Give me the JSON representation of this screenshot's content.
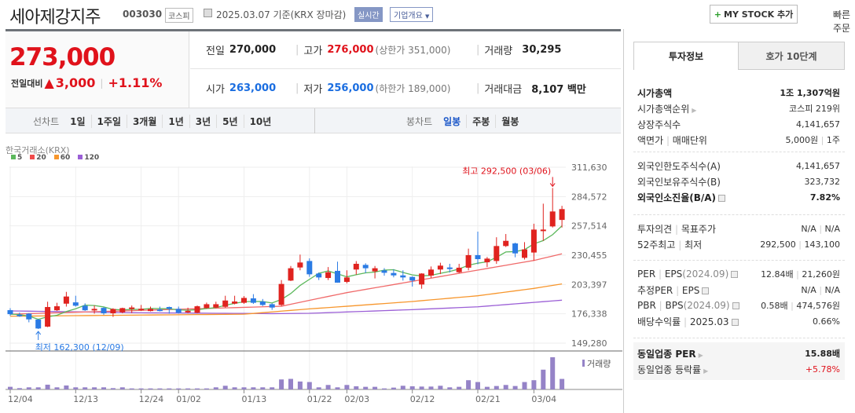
{
  "header": {
    "title": "세아제강지주",
    "code": "003030",
    "market": "코스피",
    "date": "2025.03.07",
    "basis": "기준(KRX 장마감)",
    "realtime": "실시간",
    "company_info": "기업개요",
    "mystock_plus": "+",
    "mystock": "MY STOCK 추가",
    "quick_order": "빠른주문"
  },
  "price": {
    "current": "273,000",
    "change_label": "전일대비",
    "change_arrow": "▲",
    "change": "3,000",
    "change_pct": "+1.11%"
  },
  "summary": {
    "prev_label": "전일",
    "prev": "270,000",
    "high_label": "고가",
    "high": "276,000",
    "upper_label": "(상한가 351,000)",
    "volume_label": "거래량",
    "volume": "30,295",
    "open_label": "시가",
    "open": "263,000",
    "low_label": "저가",
    "low": "256,000",
    "lower_label": "(하한가 189,000)",
    "amount_label": "거래대금",
    "amount": "8,107 백만"
  },
  "chart_tabs": {
    "line_label": "선차트",
    "line": [
      "1일",
      "1주일",
      "3개월",
      "1년",
      "3년",
      "5년",
      "10년"
    ],
    "candle_label": "봉차트",
    "candle": [
      "일봉",
      "주봉",
      "월봉"
    ],
    "selected": "일봉"
  },
  "chart_data": {
    "type": "candlestick",
    "source": "한국거래소(KRX)",
    "legend": [
      "5",
      "20",
      "60",
      "120"
    ],
    "colors": {
      "ma5": "#5cb85c",
      "ma20": "#f06a6a",
      "ma60": "#f7962c",
      "ma120": "#9b5fd6",
      "up": "#e0231f",
      "down": "#2b7be4",
      "volume": "#9583c7"
    },
    "y_ticks": [
      "311,630",
      "284,572",
      "257,514",
      "230,455",
      "203,397",
      "176,338",
      "149,280"
    ],
    "ylim": [
      149280,
      311630
    ],
    "x_labels": [
      {
        "i": 0,
        "t": "12/04"
      },
      {
        "i": 7,
        "t": "12/13"
      },
      {
        "i": 14,
        "t": "12/24"
      },
      {
        "i": 18,
        "t": "01/02"
      },
      {
        "i": 25,
        "t": "01/13"
      },
      {
        "i": 32,
        "t": "01/22"
      },
      {
        "i": 36,
        "t": "02/03"
      },
      {
        "i": 43,
        "t": "02/12"
      },
      {
        "i": 50,
        "t": "02/21"
      },
      {
        "i": 56,
        "t": "03/04"
      }
    ],
    "ohlc_thousands": [
      [
        179.7,
        181.5,
        174.5,
        176
      ],
      [
        175.5,
        177.5,
        173.5,
        175.3
      ],
      [
        176.5,
        177,
        168.5,
        171.2
      ],
      [
        171,
        171.5,
        162.3,
        162.8
      ],
      [
        164.5,
        187.5,
        164,
        182.6
      ],
      [
        179.6,
        186.5,
        179,
        183.3
      ],
      [
        185.7,
        196.6,
        183,
        192.3
      ],
      [
        186.9,
        193,
        183,
        183.8
      ],
      [
        183.8,
        186,
        179,
        179.6
      ],
      [
        180.8,
        184,
        176.5,
        180.9
      ],
      [
        181.8,
        182.5,
        175.5,
        176.8
      ],
      [
        176.8,
        181.5,
        173.5,
        180.8
      ],
      [
        177.7,
        182,
        176.8,
        181.6
      ],
      [
        181.8,
        184,
        177,
        182.2
      ],
      [
        180.6,
        184.5,
        179,
        181
      ],
      [
        178.9,
        183,
        178.5,
        180.8
      ],
      [
        180.3,
        183,
        178.5,
        180.1
      ],
      [
        182.6,
        183,
        176.5,
        180.9
      ],
      [
        180.9,
        183,
        176.5,
        177.3
      ],
      [
        178.7,
        182,
        177,
        179.1
      ],
      [
        177.3,
        184,
        176.8,
        183.3
      ],
      [
        181.6,
        186.7,
        181,
        185.2
      ],
      [
        182.1,
        187.5,
        181.6,
        185.2
      ],
      [
        182.8,
        193,
        182,
        188.6
      ],
      [
        185.7,
        193,
        185,
        187.7
      ],
      [
        186.5,
        192.7,
        185.5,
        191
      ],
      [
        190.6,
        194.5,
        185.5,
        186.5
      ],
      [
        187.7,
        190,
        183.5,
        184.5
      ],
      [
        185.2,
        186,
        180,
        182.1
      ],
      [
        184.5,
        207.5,
        183.5,
        203.9
      ],
      [
        207,
        220.5,
        206.5,
        218.4
      ],
      [
        219.1,
        231,
        216.5,
        223.7
      ],
      [
        225.1,
        227.5,
        210.5,
        212.8
      ],
      [
        213.5,
        214.5,
        207.5,
        209.9
      ],
      [
        209.4,
        219.5,
        207.5,
        214.7
      ],
      [
        216,
        224.5,
        205,
        205.1
      ],
      [
        205.8,
        216.5,
        204.5,
        209.9
      ],
      [
        217.2,
        225,
        212.5,
        222.5
      ],
      [
        221.5,
        223,
        214,
        218.4
      ],
      [
        215.5,
        220.5,
        209,
        218.4
      ],
      [
        216.4,
        218.5,
        211.5,
        214.2
      ],
      [
        214,
        217.5,
        210,
        211.8
      ],
      [
        211.8,
        216.5,
        207,
        209.9
      ],
      [
        210.4,
        211,
        201.5,
        207
      ],
      [
        203.4,
        213.8,
        199.5,
        213.5
      ],
      [
        211.6,
        220,
        209.5,
        217.2
      ],
      [
        217.2,
        223.5,
        213,
        220.8
      ],
      [
        219.1,
        222.5,
        214.5,
        218.4
      ],
      [
        214.7,
        222.5,
        214,
        218.9
      ],
      [
        218.9,
        236.5,
        216.5,
        230.5
      ],
      [
        230.5,
        252.2,
        222,
        226.8
      ],
      [
        223.9,
        228.8,
        219.5,
        227.3
      ],
      [
        225.1,
        247,
        222.5,
        238.9
      ],
      [
        238.9,
        250,
        238,
        243.7
      ],
      [
        241.3,
        242,
        228.5,
        232.1
      ],
      [
        228,
        242.5,
        226.5,
        235.8
      ],
      [
        232.9,
        259.5,
        225.5,
        254.1
      ],
      [
        253.4,
        278,
        243.7,
        254.1
      ],
      [
        257,
        292.5,
        256,
        270.8
      ],
      [
        263,
        276,
        256,
        273
      ]
    ],
    "ma_keypoints_thousands": {
      "ma20": [
        [
          0,
          176
        ],
        [
          29,
          183.3
        ],
        [
          33,
          190.6
        ],
        [
          36,
          195.9
        ],
        [
          43,
          206.3
        ],
        [
          50,
          216.7
        ],
        [
          56,
          225.6
        ],
        [
          59,
          231.7
        ]
      ],
      "ma60": [
        [
          0,
          174.1
        ],
        [
          25,
          176
        ],
        [
          32,
          180.9
        ],
        [
          36,
          183.3
        ],
        [
          43,
          187.7
        ],
        [
          50,
          193
        ],
        [
          56,
          199.8
        ],
        [
          59,
          203.9
        ]
      ],
      "ma120": [
        [
          0,
          179
        ],
        [
          14,
          177.3
        ],
        [
          28,
          176.5
        ],
        [
          32,
          176.8
        ],
        [
          43,
          180.2
        ],
        [
          50,
          182.8
        ],
        [
          59,
          188.9
        ]
      ]
    },
    "volume": [
      7600,
      3800,
      6100,
      6100,
      13700,
      6100,
      11400,
      6100,
      6100,
      6100,
      6100,
      3800,
      6100,
      3000,
      3000,
      3000,
      3000,
      3000,
      3000,
      3000,
      3000,
      3000,
      6100,
      10600,
      6100,
      6100,
      6100,
      6100,
      6100,
      28800,
      30400,
      22800,
      21300,
      6100,
      12900,
      6100,
      12900,
      9100,
      7600,
      7600,
      3000,
      5300,
      10600,
      9100,
      8300,
      8300,
      10600,
      6100,
      7600,
      26600,
      21300,
      7600,
      9900,
      12900,
      9900,
      21300,
      26600,
      56900,
      92600,
      30295
    ],
    "volume_label": "거래량",
    "annotations": {
      "high": "최고 292,500 (03/06)",
      "low": "최저 162,300 (12/09)"
    }
  },
  "side": {
    "tabs": [
      "투자정보",
      "호가 10단계"
    ],
    "g1": [
      {
        "k": "시가총액",
        "v": "1조 1,307억원",
        "bold": true
      },
      {
        "k": "시가총액순위",
        "v": "코스피 219위",
        "arrow": true
      },
      {
        "k": "상장주식수",
        "v": "4,141,657"
      },
      {
        "k": "액면가",
        "k2": "매매단위",
        "v": "5,000원",
        "v2": "1주"
      }
    ],
    "g2": [
      {
        "k": "외국인한도주식수(A)",
        "v": "4,141,657"
      },
      {
        "k": "외국인보유주식수(B)",
        "v": "323,732"
      },
      {
        "k": "외국인소진율(B/A)",
        "v": "7.82%",
        "bold": true,
        "q": true
      }
    ],
    "g3": [
      {
        "k": "투자의견",
        "k2": "목표주가",
        "v": "N/A",
        "v2": "N/A"
      },
      {
        "k": "52주최고",
        "k2": "최저",
        "v": "292,500",
        "v2": "143,100"
      }
    ],
    "g4": [
      {
        "k": "PER",
        "k2": "EPS",
        "k3": "(2024.09)",
        "v": "12.84배",
        "v2": "21,260원",
        "q": true
      },
      {
        "k": "추정PER",
        "k2": "EPS",
        "v": "N/A",
        "v2": "N/A",
        "q": true
      },
      {
        "k": "PBR",
        "k2": "BPS",
        "k3": "(2024.09)",
        "v": "0.58배",
        "v2": "474,576원",
        "q": true
      },
      {
        "k": "배당수익률",
        "k2": "2025.03",
        "v": "0.66%",
        "q": true
      }
    ],
    "g5": [
      {
        "k": "동일업종 PER",
        "v": "15.88배",
        "bold": true,
        "arrow": true
      },
      {
        "k": "동일업종 등락률",
        "v": "+5.78%",
        "arrow": true,
        "red": true
      }
    ]
  }
}
